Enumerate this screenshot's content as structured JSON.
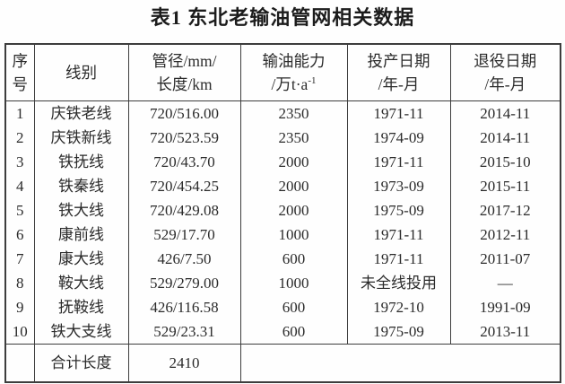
{
  "title": "表1 东北老输油管网相关数据",
  "table": {
    "header": {
      "no_line1": "序",
      "no_line2": "号",
      "line_name": "线别",
      "size_line1": "管径/mm/",
      "size_line2": "长度/km",
      "capacity_line1": "输油能力",
      "capacity_line2_pre": "/万t·a",
      "capacity_sup": "-1",
      "start_line1": "投产日期",
      "start_line2": "/年-月",
      "retire_line1": "退役日期",
      "retire_line2": "/年-月"
    },
    "rows": [
      {
        "no": "1",
        "line": "庆铁老线",
        "size": "720/516.00",
        "capacity": "2350",
        "start": "1971-11",
        "retire": "2014-11"
      },
      {
        "no": "2",
        "line": "庆铁新线",
        "size": "720/523.59",
        "capacity": "2350",
        "start": "1974-09",
        "retire": "2014-11"
      },
      {
        "no": "3",
        "line": "铁抚线",
        "size": "720/43.70",
        "capacity": "2000",
        "start": "1971-11",
        "retire": "2015-10"
      },
      {
        "no": "4",
        "line": "铁秦线",
        "size": "720/454.25",
        "capacity": "2000",
        "start": "1973-09",
        "retire": "2015-11"
      },
      {
        "no": "5",
        "line": "铁大线",
        "size": "720/429.08",
        "capacity": "2000",
        "start": "1975-09",
        "retire": "2017-12"
      },
      {
        "no": "6",
        "line": "康前线",
        "size": "529/17.70",
        "capacity": "1000",
        "start": "1971-11",
        "retire": "2012-11"
      },
      {
        "no": "7",
        "line": "康大线",
        "size": "426/7.50",
        "capacity": "600",
        "start": "1971-11",
        "retire": "2011-07"
      },
      {
        "no": "8",
        "line": "鞍大线",
        "size": "529/279.00",
        "capacity": "1000",
        "start": "未全线投用",
        "retire": "—"
      },
      {
        "no": "9",
        "line": "抚鞍线",
        "size": "426/116.58",
        "capacity": "600",
        "start": "1972-10",
        "retire": "1991-09"
      },
      {
        "no": "10",
        "line": "铁大支线",
        "size": "529/23.31",
        "capacity": "600",
        "start": "1975-09",
        "retire": "2013-11"
      }
    ],
    "footer": {
      "no": "",
      "label": "合计长度",
      "total": "2410",
      "rest": ""
    }
  }
}
